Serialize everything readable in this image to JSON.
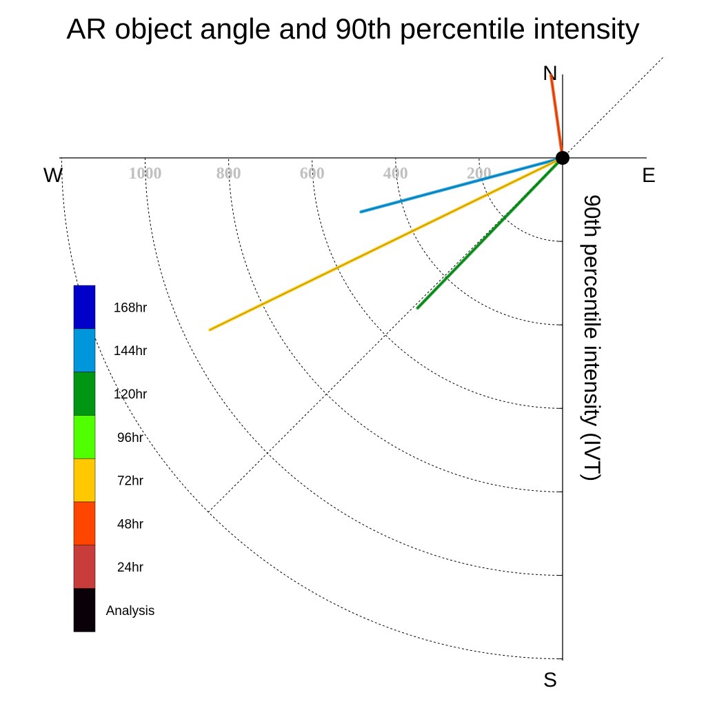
{
  "chart_data": {
    "type": "polar-line",
    "title": "AR object angle and 90th percentile intensity",
    "radial_axis_label": "90th percentile intensity (IVT)",
    "compass": {
      "north": "N",
      "south": "S",
      "east": "E",
      "west": "W"
    },
    "radial_ticks": [
      200,
      400,
      600,
      800,
      1000
    ],
    "radial_max": 1200,
    "grid": true,
    "legend": [
      {
        "label": "168hr",
        "color": "#0000c8"
      },
      {
        "label": "144hr",
        "color": "#0096dc"
      },
      {
        "label": "120hr",
        "color": "#009614"
      },
      {
        "label": "96hr",
        "color": "#50ff00"
      },
      {
        "label": "72hr",
        "color": "#ffc800"
      },
      {
        "label": "48hr",
        "color": "#ff4600"
      },
      {
        "label": "24hr",
        "color": "#c83c3c"
      },
      {
        "label": "Analysis",
        "color": "#0a0008"
      }
    ],
    "series": [
      {
        "label": "144hr",
        "color": "#0096dc",
        "angle_deg": 255,
        "intensity": 500
      },
      {
        "label": "72hr",
        "color": "#ffc800",
        "angle_deg": 244,
        "intensity": 940
      },
      {
        "label": "120hr",
        "color": "#009614",
        "angle_deg": 224,
        "intensity": 500
      },
      {
        "label": "48hr",
        "color": "#ff4600",
        "angle_deg": 352,
        "intensity": 200
      }
    ]
  }
}
